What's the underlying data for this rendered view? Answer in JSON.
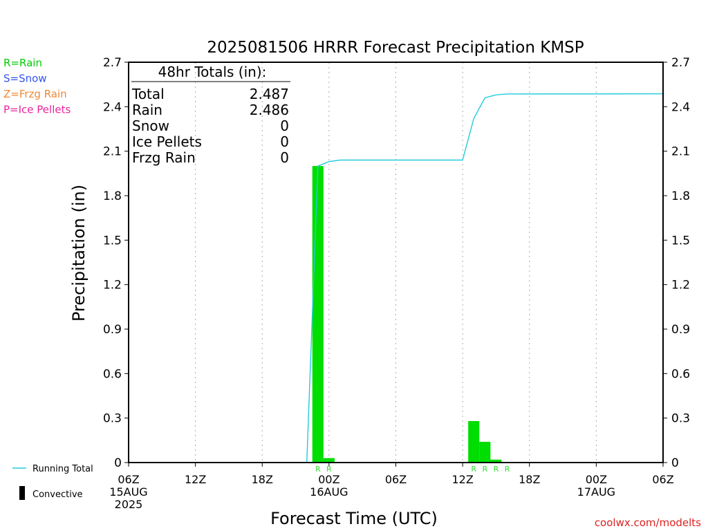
{
  "chart_data": {
    "type": "bar",
    "title": "2025081506 HRRR Forecast Precipitation KMSP",
    "xlabel": "Forecast Time (UTC)",
    "ylabel": "Precipitation (in)",
    "ylim": [
      0,
      2.7
    ],
    "xlim_hours": [
      0,
      48
    ],
    "yticks": [
      "0",
      "0.3",
      "0.6",
      "0.9",
      "1.2",
      "1.5",
      "1.8",
      "2.1",
      "2.4",
      "2.7"
    ],
    "xticks": [
      {
        "hour": 0,
        "lines": [
          "06Z",
          "15AUG",
          "2025"
        ]
      },
      {
        "hour": 6,
        "lines": [
          "12Z"
        ]
      },
      {
        "hour": 12,
        "lines": [
          "18Z"
        ]
      },
      {
        "hour": 18,
        "lines": [
          "00Z",
          "16AUG"
        ]
      },
      {
        "hour": 24,
        "lines": [
          "06Z"
        ]
      },
      {
        "hour": 30,
        "lines": [
          "12Z"
        ]
      },
      {
        "hour": 36,
        "lines": [
          "18Z"
        ]
      },
      {
        "hour": 42,
        "lines": [
          "00Z",
          "17AUG"
        ]
      },
      {
        "hour": 48,
        "lines": [
          "06Z"
        ]
      }
    ],
    "grid": true,
    "bars": [
      {
        "hour": 17,
        "value": 2.0
      },
      {
        "hour": 18,
        "value": 0.03
      },
      {
        "hour": 31,
        "value": 0.28
      },
      {
        "hour": 32,
        "value": 0.14
      },
      {
        "hour": 33,
        "value": 0.02
      }
    ],
    "precip_type_markers": [
      {
        "hour": 17,
        "label": "R"
      },
      {
        "hour": 18,
        "label": "R"
      },
      {
        "hour": 31,
        "label": "R"
      },
      {
        "hour": 32,
        "label": "R"
      },
      {
        "hour": 33,
        "label": "R"
      },
      {
        "hour": 34,
        "label": "R"
      }
    ],
    "running_total": {
      "name": "Running Total",
      "points": [
        [
          0.5,
          0
        ],
        [
          16.0,
          0
        ],
        [
          16.5,
          1.0
        ],
        [
          17.0,
          2.0
        ],
        [
          18.0,
          2.03
        ],
        [
          19.0,
          2.04
        ],
        [
          30.0,
          2.04
        ],
        [
          31.0,
          2.32
        ],
        [
          32.0,
          2.46
        ],
        [
          33.0,
          2.48
        ],
        [
          34.0,
          2.486
        ],
        [
          48.0,
          2.487
        ]
      ]
    },
    "totals_box": {
      "header": "48hr Totals (in):",
      "rows": [
        {
          "label": "Total",
          "value": "2.487"
        },
        {
          "label": "Rain",
          "value": "2.486"
        },
        {
          "label": "Snow",
          "value": "0"
        },
        {
          "label": "Ice Pellets",
          "value": "0"
        },
        {
          "label": "Frzg Rain",
          "value": "0"
        }
      ]
    },
    "type_legend": [
      {
        "text": "R=Rain",
        "color": "#00cc00"
      },
      {
        "text": "S=Snow",
        "color": "#3355ee"
      },
      {
        "text": "Z=Frzg Rain",
        "color": "#ee8833"
      },
      {
        "text": "P=Ice Pellets",
        "color": "#ee2299"
      }
    ],
    "legend": [
      {
        "label": "Running Total",
        "kind": "line",
        "color": "#22ccdd"
      },
      {
        "label": "Convective",
        "kind": "bar",
        "color": "#000000"
      }
    ],
    "colors": {
      "bar": "#00dd00",
      "running_total": "#22ccdd",
      "marker": "#33dd33"
    }
  },
  "credit": "coolwx.com/modelts"
}
